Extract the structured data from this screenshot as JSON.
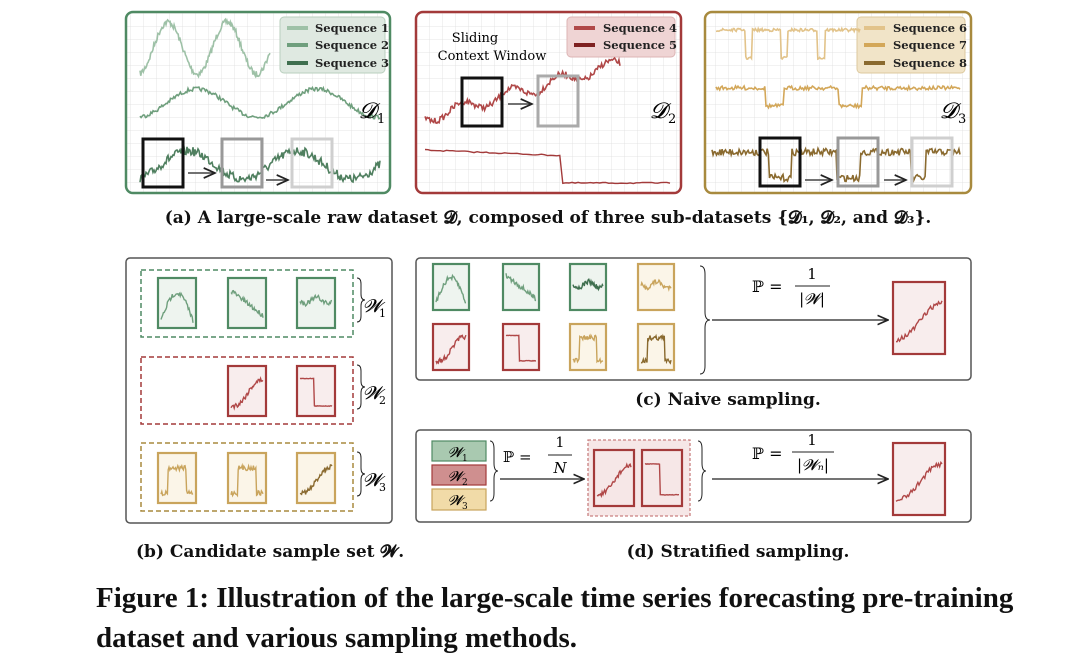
{
  "colors": {
    "green_border": "#4f8a63",
    "green_line": "#5f9471",
    "red_border": "#a33a3a",
    "red_line": "#b04848",
    "gold_border": "#a88a3e",
    "gold_line": "#c9a45c",
    "gray_panel": "#555555"
  },
  "panel_a": {
    "d1": {
      "legend": [
        "Sequence 1",
        "Sequence 2",
        "Sequence 3"
      ],
      "label": "𝓓",
      "sub": "1"
    },
    "d2": {
      "legend": [
        "Sequence 4",
        "Sequence 5"
      ],
      "label": "𝓓",
      "sub": "2",
      "annot_line1": "Sliding",
      "annot_line2": "Context Window"
    },
    "d3": {
      "legend": [
        "Sequence 6",
        "Sequence 7",
        "Sequence 8"
      ],
      "label": "𝓓",
      "sub": "3"
    },
    "caption": "(a) A large-scale raw dataset 𝓓, composed of three sub-datasets {𝓓₁, 𝓓₂, and 𝓓₃}."
  },
  "panel_b": {
    "labels": [
      {
        "main": "𝓦",
        "sub": "1"
      },
      {
        "main": "𝓦",
        "sub": "2"
      },
      {
        "main": "𝓦",
        "sub": "3"
      }
    ],
    "caption": "(b) Candidate sample set 𝓦."
  },
  "panel_c": {
    "prob_lhs": "ℙ =",
    "prob_num": "1",
    "prob_den": "|𝓦|",
    "caption": "(c) Naive sampling."
  },
  "panel_d": {
    "strata": [
      {
        "main": "𝓦",
        "sub": "1"
      },
      {
        "main": "𝓦",
        "sub": "2"
      },
      {
        "main": "𝓦",
        "sub": "3"
      }
    ],
    "prob1_lhs": "ℙ =",
    "prob1_num": "1",
    "prob1_den": "N",
    "prob2_lhs": "ℙ =",
    "prob2_num": "1",
    "prob2_den": "|𝓦ₙ|",
    "caption": "(d) Stratified sampling."
  },
  "figure_caption": "Figure 1: Illustration of the large-scale time series forecasting pre-training dataset and various sampling methods."
}
